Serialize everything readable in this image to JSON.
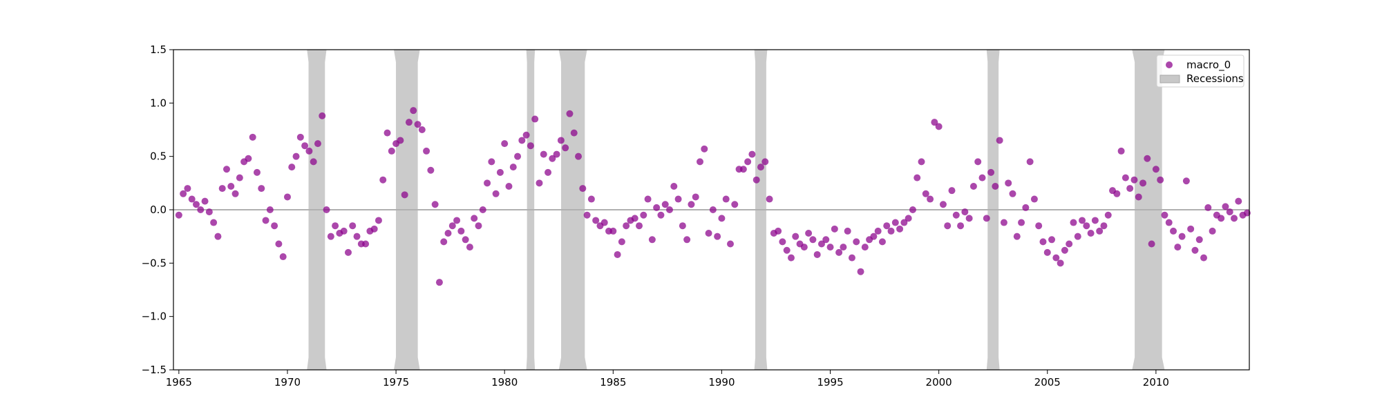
{
  "chart_data": {
    "type": "scatter",
    "title": "",
    "xlabel": "",
    "ylabel": "",
    "xlim": [
      1964.75,
      2014.3
    ],
    "ylim": [
      -1.5,
      1.5
    ],
    "x_ticks": [
      1965,
      1970,
      1975,
      1980,
      1985,
      1990,
      1995,
      2000,
      2005,
      2010
    ],
    "x_tick_labels": [
      "1965",
      "1970",
      "1975",
      "1980",
      "1985",
      "1990",
      "1995",
      "2000",
      "2005",
      "2010"
    ],
    "y_ticks": [
      -1.5,
      -1.0,
      -0.5,
      0.0,
      0.5,
      1.0,
      1.5
    ],
    "y_tick_labels": [
      "−1.5",
      "−1.0",
      "−0.5",
      "0.0",
      "0.5",
      "1.0",
      "1.5"
    ],
    "zero_line": true,
    "grid": false,
    "legend_position": "top-right",
    "series": [
      {
        "name": "macro_0",
        "color": "#8B008B",
        "points": [
          [
            1965.0,
            -0.05
          ],
          [
            1965.2,
            0.15
          ],
          [
            1965.4,
            0.2
          ],
          [
            1965.6,
            0.1
          ],
          [
            1965.8,
            0.05
          ],
          [
            1966.0,
            0.0
          ],
          [
            1966.2,
            0.08
          ],
          [
            1966.4,
            -0.02
          ],
          [
            1966.6,
            -0.12
          ],
          [
            1966.8,
            -0.25
          ],
          [
            1967.0,
            0.2
          ],
          [
            1967.2,
            0.38
          ],
          [
            1967.4,
            0.22
          ],
          [
            1967.6,
            0.15
          ],
          [
            1967.8,
            0.3
          ],
          [
            1968.0,
            0.45
          ],
          [
            1968.2,
            0.48
          ],
          [
            1968.4,
            0.68
          ],
          [
            1968.6,
            0.35
          ],
          [
            1968.8,
            0.2
          ],
          [
            1969.0,
            -0.1
          ],
          [
            1969.2,
            0.0
          ],
          [
            1969.4,
            -0.15
          ],
          [
            1969.6,
            -0.32
          ],
          [
            1969.8,
            -0.44
          ],
          [
            1970.0,
            0.12
          ],
          [
            1970.2,
            0.4
          ],
          [
            1970.4,
            0.5
          ],
          [
            1970.6,
            0.68
          ],
          [
            1970.8,
            0.6
          ],
          [
            1971.0,
            0.55
          ],
          [
            1971.2,
            0.45
          ],
          [
            1971.4,
            0.62
          ],
          [
            1971.6,
            0.88
          ],
          [
            1971.8,
            0.0
          ],
          [
            1972.0,
            -0.25
          ],
          [
            1972.2,
            -0.15
          ],
          [
            1972.4,
            -0.22
          ],
          [
            1972.6,
            -0.2
          ],
          [
            1972.8,
            -0.4
          ],
          [
            1973.0,
            -0.15
          ],
          [
            1973.2,
            -0.25
          ],
          [
            1973.4,
            -0.32
          ],
          [
            1973.6,
            -0.32
          ],
          [
            1973.8,
            -0.2
          ],
          [
            1974.0,
            -0.18
          ],
          [
            1974.2,
            -0.1
          ],
          [
            1974.4,
            0.28
          ],
          [
            1974.6,
            0.72
          ],
          [
            1974.8,
            0.55
          ],
          [
            1975.0,
            0.62
          ],
          [
            1975.2,
            0.65
          ],
          [
            1975.4,
            0.14
          ],
          [
            1975.6,
            0.82
          ],
          [
            1975.8,
            0.93
          ],
          [
            1976.0,
            0.8
          ],
          [
            1976.2,
            0.75
          ],
          [
            1976.4,
            0.55
          ],
          [
            1976.6,
            0.37
          ],
          [
            1976.8,
            0.05
          ],
          [
            1977.0,
            -0.68
          ],
          [
            1977.2,
            -0.3
          ],
          [
            1977.4,
            -0.22
          ],
          [
            1977.6,
            -0.15
          ],
          [
            1977.8,
            -0.1
          ],
          [
            1978.0,
            -0.2
          ],
          [
            1978.2,
            -0.28
          ],
          [
            1978.4,
            -0.35
          ],
          [
            1978.6,
            -0.08
          ],
          [
            1978.8,
            -0.15
          ],
          [
            1979.0,
            0.0
          ],
          [
            1979.2,
            0.25
          ],
          [
            1979.4,
            0.45
          ],
          [
            1979.6,
            0.15
          ],
          [
            1979.8,
            0.35
          ],
          [
            1980.0,
            0.62
          ],
          [
            1980.2,
            0.22
          ],
          [
            1980.4,
            0.4
          ],
          [
            1980.6,
            0.5
          ],
          [
            1980.8,
            0.65
          ],
          [
            1981.0,
            0.7
          ],
          [
            1981.2,
            0.6
          ],
          [
            1981.4,
            0.85
          ],
          [
            1981.6,
            0.25
          ],
          [
            1981.8,
            0.52
          ],
          [
            1982.0,
            0.35
          ],
          [
            1982.2,
            0.48
          ],
          [
            1982.4,
            0.52
          ],
          [
            1982.6,
            0.65
          ],
          [
            1982.8,
            0.58
          ],
          [
            1983.0,
            0.9
          ],
          [
            1983.2,
            0.72
          ],
          [
            1983.4,
            0.5
          ],
          [
            1983.6,
            0.2
          ],
          [
            1983.8,
            -0.05
          ],
          [
            1984.0,
            0.1
          ],
          [
            1984.2,
            -0.1
          ],
          [
            1984.4,
            -0.15
          ],
          [
            1984.6,
            -0.12
          ],
          [
            1984.8,
            -0.2
          ],
          [
            1985.0,
            -0.2
          ],
          [
            1985.2,
            -0.42
          ],
          [
            1985.4,
            -0.3
          ],
          [
            1985.6,
            -0.15
          ],
          [
            1985.8,
            -0.1
          ],
          [
            1986.0,
            -0.08
          ],
          [
            1986.2,
            -0.15
          ],
          [
            1986.4,
            -0.05
          ],
          [
            1986.6,
            0.1
          ],
          [
            1986.8,
            -0.28
          ],
          [
            1987.0,
            0.02
          ],
          [
            1987.2,
            -0.05
          ],
          [
            1987.4,
            0.05
          ],
          [
            1987.6,
            0.0
          ],
          [
            1987.8,
            0.22
          ],
          [
            1988.0,
            0.1
          ],
          [
            1988.2,
            -0.15
          ],
          [
            1988.4,
            -0.28
          ],
          [
            1988.6,
            0.05
          ],
          [
            1988.8,
            0.12
          ],
          [
            1989.0,
            0.45
          ],
          [
            1989.2,
            0.57
          ],
          [
            1989.4,
            -0.22
          ],
          [
            1989.6,
            0.0
          ],
          [
            1989.8,
            -0.25
          ],
          [
            1990.0,
            -0.08
          ],
          [
            1990.2,
            0.1
          ],
          [
            1990.4,
            -0.32
          ],
          [
            1990.6,
            0.05
          ],
          [
            1990.8,
            0.38
          ],
          [
            1991.0,
            0.38
          ],
          [
            1991.2,
            0.45
          ],
          [
            1991.4,
            0.52
          ],
          [
            1991.6,
            0.28
          ],
          [
            1991.8,
            0.4
          ],
          [
            1992.0,
            0.45
          ],
          [
            1992.2,
            0.1
          ],
          [
            1992.4,
            -0.22
          ],
          [
            1992.6,
            -0.2
          ],
          [
            1992.8,
            -0.3
          ],
          [
            1993.0,
            -0.38
          ],
          [
            1993.2,
            -0.45
          ],
          [
            1993.4,
            -0.25
          ],
          [
            1993.6,
            -0.32
          ],
          [
            1993.8,
            -0.35
          ],
          [
            1994.0,
            -0.22
          ],
          [
            1994.2,
            -0.28
          ],
          [
            1994.4,
            -0.42
          ],
          [
            1994.6,
            -0.32
          ],
          [
            1994.8,
            -0.28
          ],
          [
            1995.0,
            -0.35
          ],
          [
            1995.2,
            -0.18
          ],
          [
            1995.4,
            -0.4
          ],
          [
            1995.6,
            -0.35
          ],
          [
            1995.8,
            -0.2
          ],
          [
            1996.0,
            -0.45
          ],
          [
            1996.2,
            -0.3
          ],
          [
            1996.4,
            -0.58
          ],
          [
            1996.6,
            -0.35
          ],
          [
            1996.8,
            -0.28
          ],
          [
            1997.0,
            -0.25
          ],
          [
            1997.2,
            -0.2
          ],
          [
            1997.4,
            -0.3
          ],
          [
            1997.6,
            -0.15
          ],
          [
            1997.8,
            -0.2
          ],
          [
            1998.0,
            -0.12
          ],
          [
            1998.2,
            -0.18
          ],
          [
            1998.4,
            -0.12
          ],
          [
            1998.6,
            -0.08
          ],
          [
            1998.8,
            0.0
          ],
          [
            1999.0,
            0.3
          ],
          [
            1999.2,
            0.45
          ],
          [
            1999.4,
            0.15
          ],
          [
            1999.6,
            0.1
          ],
          [
            1999.8,
            0.82
          ],
          [
            2000.0,
            0.78
          ],
          [
            2000.2,
            0.05
          ],
          [
            2000.4,
            -0.15
          ],
          [
            2000.6,
            0.18
          ],
          [
            2000.8,
            -0.05
          ],
          [
            2001.0,
            -0.15
          ],
          [
            2001.2,
            -0.02
          ],
          [
            2001.4,
            -0.08
          ],
          [
            2001.6,
            0.22
          ],
          [
            2001.8,
            0.45
          ],
          [
            2002.0,
            0.3
          ],
          [
            2002.2,
            -0.08
          ],
          [
            2002.4,
            0.35
          ],
          [
            2002.6,
            0.22
          ],
          [
            2002.8,
            0.65
          ],
          [
            2003.0,
            -0.12
          ],
          [
            2003.2,
            0.25
          ],
          [
            2003.4,
            0.15
          ],
          [
            2003.6,
            -0.25
          ],
          [
            2003.8,
            -0.12
          ],
          [
            2004.0,
            0.02
          ],
          [
            2004.2,
            0.45
          ],
          [
            2004.4,
            0.1
          ],
          [
            2004.6,
            -0.15
          ],
          [
            2004.8,
            -0.3
          ],
          [
            2005.0,
            -0.4
          ],
          [
            2005.2,
            -0.28
          ],
          [
            2005.4,
            -0.45
          ],
          [
            2005.6,
            -0.5
          ],
          [
            2005.8,
            -0.38
          ],
          [
            2006.0,
            -0.32
          ],
          [
            2006.2,
            -0.12
          ],
          [
            2006.4,
            -0.25
          ],
          [
            2006.6,
            -0.1
          ],
          [
            2006.8,
            -0.15
          ],
          [
            2007.0,
            -0.22
          ],
          [
            2007.2,
            -0.1
          ],
          [
            2007.4,
            -0.2
          ],
          [
            2007.6,
            -0.15
          ],
          [
            2007.8,
            -0.05
          ],
          [
            2008.0,
            0.18
          ],
          [
            2008.2,
            0.15
          ],
          [
            2008.4,
            0.55
          ],
          [
            2008.6,
            0.3
          ],
          [
            2008.8,
            0.2
          ],
          [
            2009.0,
            0.28
          ],
          [
            2009.2,
            0.12
          ],
          [
            2009.4,
            0.25
          ],
          [
            2009.6,
            0.48
          ],
          [
            2009.8,
            -0.32
          ],
          [
            2010.0,
            0.38
          ],
          [
            2010.2,
            0.28
          ],
          [
            2010.4,
            -0.05
          ],
          [
            2010.6,
            -0.12
          ],
          [
            2010.8,
            -0.2
          ],
          [
            2011.0,
            -0.35
          ],
          [
            2011.2,
            -0.25
          ],
          [
            2011.4,
            0.27
          ],
          [
            2011.6,
            -0.18
          ],
          [
            2011.8,
            -0.38
          ],
          [
            2012.0,
            -0.28
          ],
          [
            2012.2,
            -0.45
          ],
          [
            2012.4,
            0.02
          ],
          [
            2012.6,
            -0.2
          ],
          [
            2012.8,
            -0.05
          ],
          [
            2013.0,
            -0.08
          ],
          [
            2013.2,
            0.03
          ],
          [
            2013.4,
            -0.02
          ],
          [
            2013.6,
            -0.08
          ],
          [
            2013.8,
            0.08
          ],
          [
            2014.0,
            -0.05
          ],
          [
            2014.2,
            -0.03
          ]
        ]
      }
    ],
    "recessions": {
      "name": "Recessions",
      "color": "#c8c8c8",
      "periods": [
        [
          1970.9,
          1971.8
        ],
        [
          1974.9,
          1976.1
        ],
        [
          1981.0,
          1981.4
        ],
        [
          1982.5,
          1983.8
        ],
        [
          1991.5,
          1992.1
        ],
        [
          2002.2,
          2002.8
        ],
        [
          2008.9,
          2010.4
        ]
      ]
    }
  }
}
